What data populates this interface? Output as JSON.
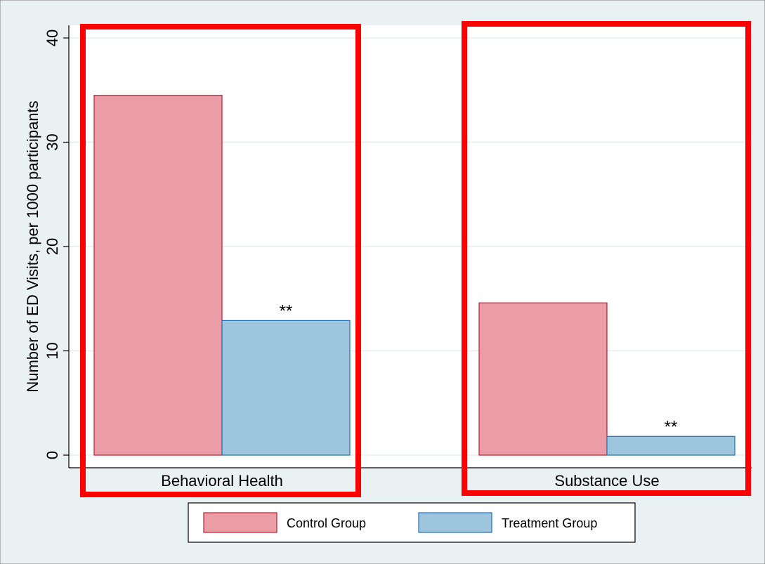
{
  "chart_data": {
    "type": "bar",
    "title": "",
    "xlabel": "",
    "ylabel": "Number of ED Visits, per 1000 participants",
    "ylim": [
      0,
      40
    ],
    "yticks": [
      0,
      10,
      20,
      30,
      40
    ],
    "grid": true,
    "categories": [
      "Behavioral Health",
      "Substance Use"
    ],
    "series": [
      {
        "name": "Control Group",
        "values": [
          34.5,
          14.6
        ]
      },
      {
        "name": "Treatment Group",
        "values": [
          12.9,
          1.8
        ]
      }
    ],
    "annotations": [
      {
        "category": "Behavioral Health",
        "series": "Treatment Group",
        "text": "**"
      },
      {
        "category": "Substance Use",
        "series": "Treatment Group",
        "text": "**"
      }
    ],
    "legend_position": "bottom",
    "highlight_boxes": [
      "Behavioral Health",
      "Substance Use"
    ]
  },
  "colors": {
    "background": "#eaf1f3",
    "plot_background": "#ffffff",
    "grid": "#e6edf0",
    "control_fill": "#ea9ca7",
    "control_stroke": "#c01c2e",
    "treatment_fill": "#9dc5de",
    "treatment_stroke": "#1f6fb2",
    "highlight": "#ff0000"
  }
}
